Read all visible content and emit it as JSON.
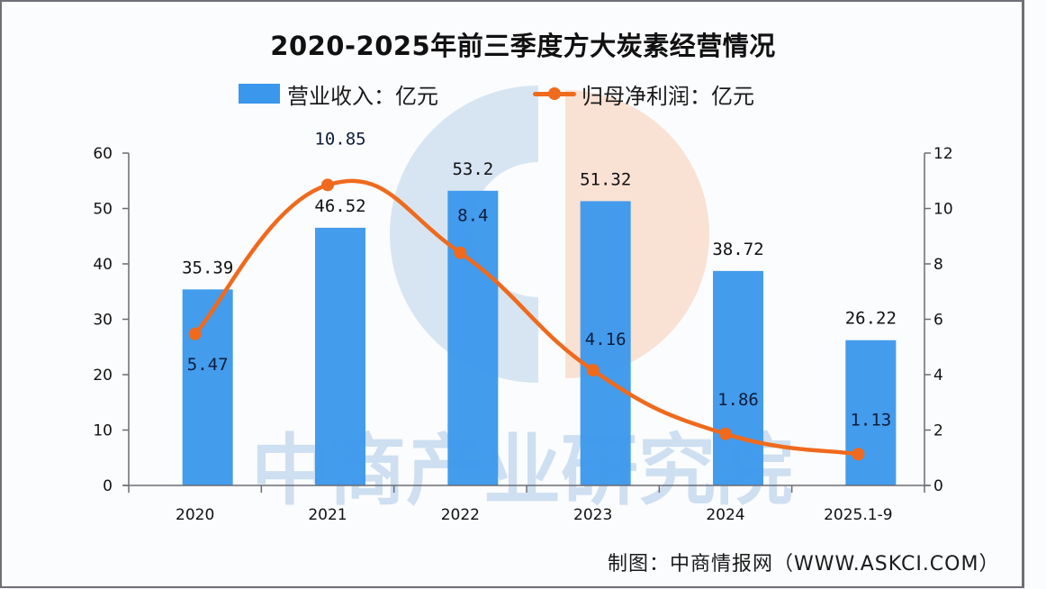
{
  "chart_data": {
    "type": "bar+line",
    "title": "2020-2025年前三季度方大炭素经营情况",
    "categories": [
      "2020",
      "2021",
      "2022",
      "2023",
      "2024",
      "2025.1-9"
    ],
    "series": [
      {
        "name": "营业收入：亿元",
        "type": "bar",
        "axis": "left",
        "color": "#3a97ec",
        "values": [
          35.39,
          46.52,
          53.2,
          51.32,
          38.72,
          26.22
        ],
        "labels": [
          "35.39",
          "46.52",
          "53.2",
          "51.32",
          "38.72",
          "26.22"
        ]
      },
      {
        "name": "归母净利润：亿元",
        "type": "line",
        "axis": "right",
        "color": "#ef6a1c",
        "smooth": true,
        "values": [
          5.47,
          10.85,
          8.4,
          4.16,
          1.86,
          1.13
        ],
        "labels": [
          "5.47",
          "10.85",
          "8.4",
          "4.16",
          "1.86",
          "1.13"
        ]
      }
    ],
    "y_left": {
      "range": [
        0,
        60
      ],
      "ticks": [
        "0",
        "10",
        "20",
        "30",
        "40",
        "50",
        "60"
      ]
    },
    "y_right": {
      "range": [
        0,
        12
      ],
      "ticks": [
        "0",
        "2",
        "4",
        "6",
        "8",
        "10",
        "12"
      ]
    },
    "xlabel": "",
    "ylabel": "",
    "grid": false,
    "legend": "top-center"
  },
  "legend": {
    "bar_label": "营业收入：亿元",
    "line_label": "归母净利润：亿元"
  },
  "watermark": {
    "text": "中商产业研究院"
  },
  "source": "制图：中商情报网（WWW.ASKCI.COM）"
}
